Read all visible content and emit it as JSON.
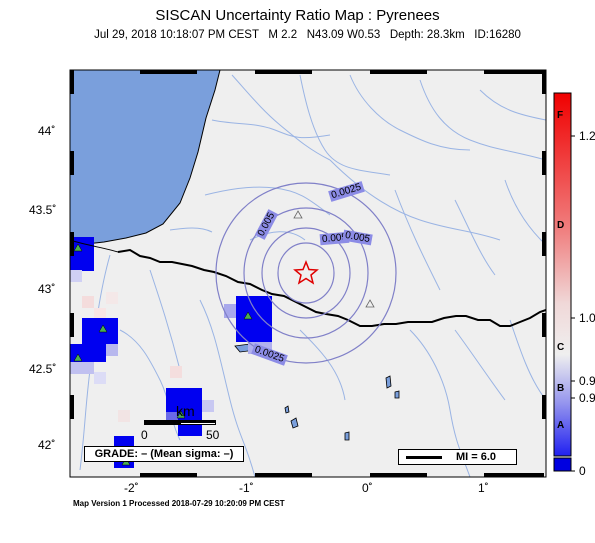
{
  "title": "SISCAN Uncertainty Ratio Map : Pyrenees",
  "subtitle": {
    "datetime": "Jul 29, 2018 10:18:07 PM CEST",
    "magnitude": "M 2.2",
    "location": "N43.09 W0.53",
    "depth": "Depth: 28.3km",
    "id": "ID:16280"
  },
  "footer": "Map Version 1 Processed 2018-07-29 10:20:09 PM CEST",
  "grade": "GRADE: – (Mean sigma: –)",
  "mi_legend": "MI = 6.0",
  "scale_bar": {
    "unit": "km",
    "start": "0",
    "end": "50"
  },
  "lat_ticks": [
    "44˚",
    "43.5˚",
    "43˚",
    "42.5˚",
    "42˚"
  ],
  "lon_ticks": [
    "-2˚",
    "-1˚",
    "0˚",
    "1˚"
  ],
  "contour_labels": [
    "0.0025",
    "0.005",
    "0.005",
    "0.005",
    "0.0025"
  ],
  "colorbar": {
    "letters": [
      "F",
      "D",
      "C",
      "B",
      "A"
    ],
    "values": [
      "1.2",
      "1.0",
      "0.9",
      "0.9",
      "0"
    ]
  },
  "colors": {
    "sea": "#7a9fdc",
    "land": "#efefef",
    "rivers": "#9ab4e4",
    "contours": "#8080c8",
    "contour_label_bg": "#8c8ce6",
    "high": "#0000f0",
    "epicenter": "#e00000"
  },
  "epicenter_icon": "star-icon",
  "station_icon": "triangle-icon"
}
